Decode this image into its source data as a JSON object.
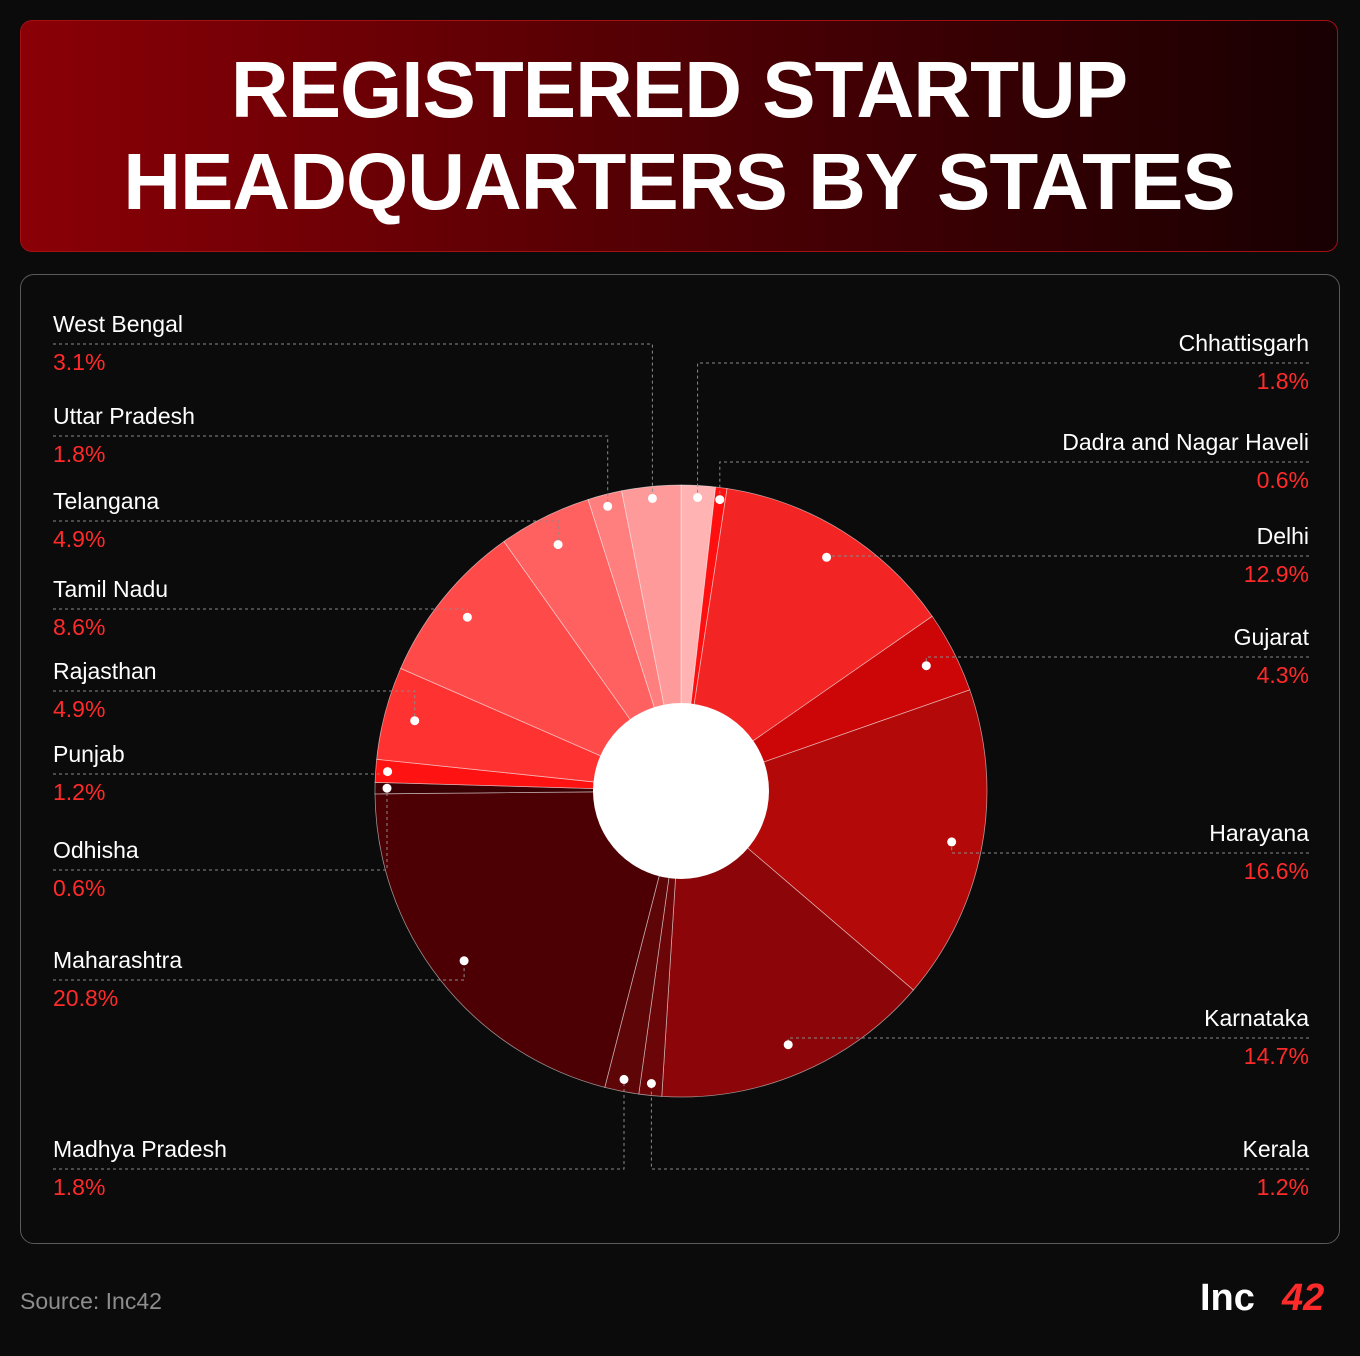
{
  "header": {
    "title": "REGISTERED STARTUP\nHEADQUARTERS BY STATES"
  },
  "footer": {
    "source": "Source: Inc42",
    "logo_text": "Inc",
    "logo_number": "42"
  },
  "colors": {
    "background": "#0b0b0b",
    "accent_red": "#ff2a2a",
    "leader_line": "#8a8a8a"
  },
  "chart_data": {
    "type": "pie",
    "style": "donut",
    "title": "REGISTERED STARTUP HEADQUARTERS BY STATES",
    "series": [
      {
        "name": "Chhattisgarh",
        "value": 1.8,
        "label": "1.8%",
        "color": "#ffb3b3",
        "side": "right"
      },
      {
        "name": "Dadra and Nagar Haveli",
        "value": 0.6,
        "label": "0.6%",
        "color": "#ff1010",
        "side": "right"
      },
      {
        "name": "Delhi",
        "value": 12.9,
        "label": "12.9%",
        "color": "#f22424",
        "side": "right"
      },
      {
        "name": "Gujarat",
        "value": 4.3,
        "label": "4.3%",
        "color": "#cc0606",
        "side": "right"
      },
      {
        "name": "Harayana",
        "value": 16.6,
        "label": "16.6%",
        "color": "#b30909",
        "side": "right"
      },
      {
        "name": "Karnataka",
        "value": 14.7,
        "label": "14.7%",
        "color": "#8c0508",
        "side": "right"
      },
      {
        "name": "Kerala",
        "value": 1.2,
        "label": "1.2%",
        "color": "#6b0508",
        "side": "right"
      },
      {
        "name": "Madhya Pradesh",
        "value": 1.8,
        "label": "1.8%",
        "color": "#5e0507",
        "side": "left"
      },
      {
        "name": "Maharashtra",
        "value": 20.8,
        "label": "20.8%",
        "color": "#4d0004",
        "side": "left"
      },
      {
        "name": "Odhisha",
        "value": 0.6,
        "label": "0.6%",
        "color": "#3a0003",
        "side": "left"
      },
      {
        "name": "Punjab",
        "value": 1.2,
        "label": "1.2%",
        "color": "#ff1212",
        "side": "left"
      },
      {
        "name": "Rajasthan",
        "value": 4.9,
        "label": "4.9%",
        "color": "#ff3232",
        "side": "left"
      },
      {
        "name": "Tamil Nadu",
        "value": 8.6,
        "label": "8.6%",
        "color": "#ff4a4a",
        "side": "left"
      },
      {
        "name": "Telangana",
        "value": 4.9,
        "label": "4.9%",
        "color": "#ff6060",
        "side": "left"
      },
      {
        "name": "Uttar Pradesh",
        "value": 1.8,
        "label": "1.8%",
        "color": "#ff7e7e",
        "side": "left"
      },
      {
        "name": "West Bengal",
        "value": 3.1,
        "label": "3.1%",
        "color": "#ff9a9a",
        "side": "left"
      }
    ]
  }
}
